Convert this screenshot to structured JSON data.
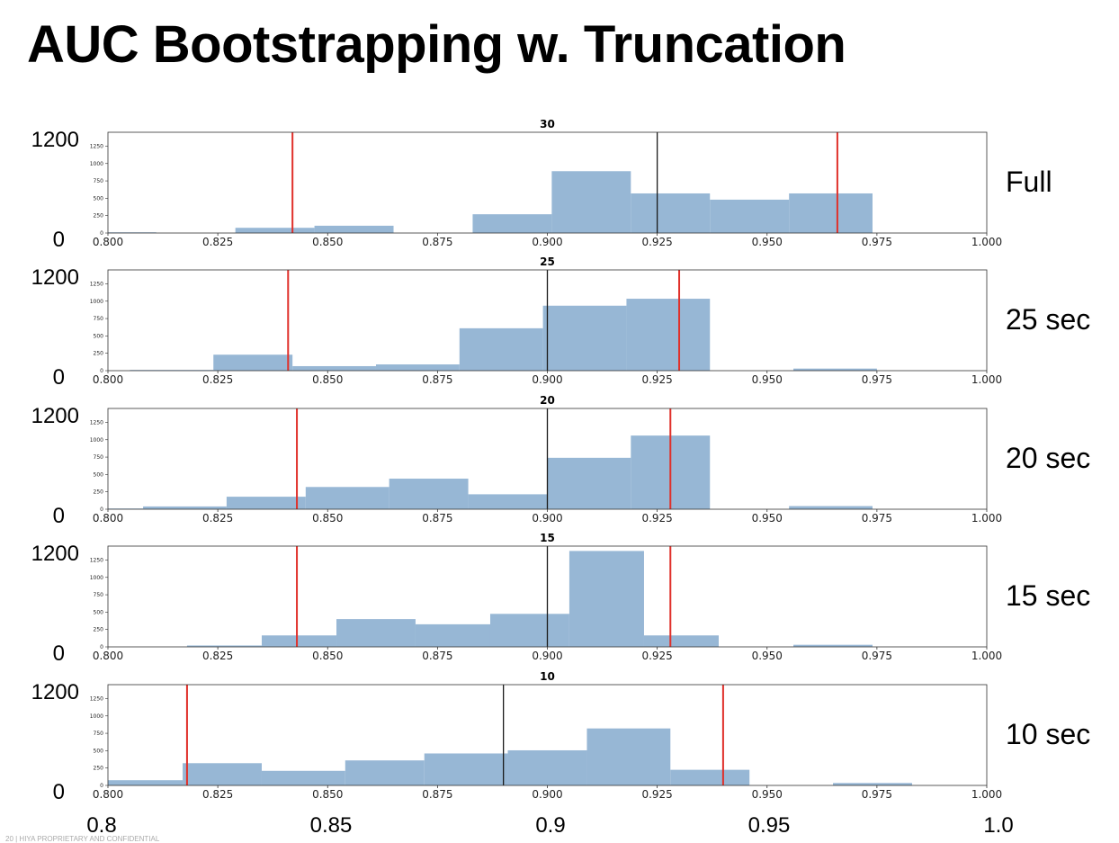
{
  "slide": {
    "title": "AUC Bootstrapping w. Truncation",
    "footer": "20 | HIYA PROPRIETARY AND CONFIDENTIAL"
  },
  "overlay": {
    "y_top_label": "1200",
    "y_bottom_label": "0",
    "bottom_ticks": [
      "0.8",
      "0.85",
      "0.9",
      "0.95",
      "1.0"
    ]
  },
  "colors": {
    "bar_fill": "#97b7d5",
    "ci_line": "#e0302a",
    "mean_line": "#1a1a1a"
  },
  "chart_data": [
    {
      "type": "bar",
      "title": "30",
      "row_label": "Full",
      "xlim": [
        0.8,
        1.0
      ],
      "ylim": [
        0,
        1450
      ],
      "xticks": [
        "0.800",
        "0.825",
        "0.850",
        "0.875",
        "0.900",
        "0.925",
        "0.950",
        "0.975",
        "1.000"
      ],
      "yticks": [
        "0",
        "250",
        "500",
        "750",
        "1000",
        "1250"
      ],
      "bins": [
        {
          "x0": 0.8,
          "x1": 0.811,
          "count": 10
        },
        {
          "x0": 0.829,
          "x1": 0.847,
          "count": 75
        },
        {
          "x0": 0.847,
          "x1": 0.865,
          "count": 105
        },
        {
          "x0": 0.883,
          "x1": 0.901,
          "count": 270
        },
        {
          "x0": 0.901,
          "x1": 0.919,
          "count": 890
        },
        {
          "x0": 0.919,
          "x1": 0.937,
          "count": 570
        },
        {
          "x0": 0.937,
          "x1": 0.955,
          "count": 480
        },
        {
          "x0": 0.955,
          "x1": 0.974,
          "count": 570
        }
      ],
      "ci_lower": 0.842,
      "ci_upper": 0.966,
      "mean": 0.925
    },
    {
      "type": "bar",
      "title": "25",
      "row_label": "25 sec",
      "xlim": [
        0.8,
        1.0
      ],
      "ylim": [
        0,
        1450
      ],
      "xticks": [
        "0.800",
        "0.825",
        "0.850",
        "0.875",
        "0.900",
        "0.925",
        "0.950",
        "0.975",
        "1.000"
      ],
      "yticks": [
        "0",
        "250",
        "500",
        "750",
        "1000",
        "1250"
      ],
      "bins": [
        {
          "x0": 0.805,
          "x1": 0.824,
          "count": 10
        },
        {
          "x0": 0.824,
          "x1": 0.842,
          "count": 230
        },
        {
          "x0": 0.842,
          "x1": 0.861,
          "count": 65
        },
        {
          "x0": 0.861,
          "x1": 0.88,
          "count": 90
        },
        {
          "x0": 0.88,
          "x1": 0.899,
          "count": 610
        },
        {
          "x0": 0.899,
          "x1": 0.918,
          "count": 935
        },
        {
          "x0": 0.918,
          "x1": 0.937,
          "count": 1035
        },
        {
          "x0": 0.956,
          "x1": 0.975,
          "count": 30
        }
      ],
      "ci_lower": 0.841,
      "ci_upper": 0.93,
      "mean": 0.9
    },
    {
      "type": "bar",
      "title": "20",
      "row_label": "20 sec",
      "xlim": [
        0.8,
        1.0
      ],
      "ylim": [
        0,
        1450
      ],
      "xticks": [
        "0.800",
        "0.825",
        "0.850",
        "0.875",
        "0.900",
        "0.925",
        "0.950",
        "0.975",
        "1.000"
      ],
      "yticks": [
        "0",
        "250",
        "500",
        "750",
        "1000",
        "1250"
      ],
      "bins": [
        {
          "x0": 0.8,
          "x1": 0.808,
          "count": 10
        },
        {
          "x0": 0.808,
          "x1": 0.827,
          "count": 40
        },
        {
          "x0": 0.827,
          "x1": 0.845,
          "count": 180
        },
        {
          "x0": 0.845,
          "x1": 0.864,
          "count": 320
        },
        {
          "x0": 0.864,
          "x1": 0.882,
          "count": 440
        },
        {
          "x0": 0.882,
          "x1": 0.9,
          "count": 215
        },
        {
          "x0": 0.9,
          "x1": 0.919,
          "count": 740
        },
        {
          "x0": 0.919,
          "x1": 0.937,
          "count": 1060
        },
        {
          "x0": 0.955,
          "x1": 0.974,
          "count": 45
        }
      ],
      "ci_lower": 0.843,
      "ci_upper": 0.928,
      "mean": 0.9
    },
    {
      "type": "bar",
      "title": "15",
      "row_label": "15 sec",
      "xlim": [
        0.8,
        1.0
      ],
      "ylim": [
        0,
        1450
      ],
      "xticks": [
        "0.800",
        "0.825",
        "0.850",
        "0.875",
        "0.900",
        "0.925",
        "0.950",
        "0.975",
        "1.000"
      ],
      "yticks": [
        "0",
        "250",
        "500",
        "750",
        "1000",
        "1250"
      ],
      "bins": [
        {
          "x0": 0.818,
          "x1": 0.835,
          "count": 20
        },
        {
          "x0": 0.835,
          "x1": 0.852,
          "count": 165
        },
        {
          "x0": 0.852,
          "x1": 0.87,
          "count": 400
        },
        {
          "x0": 0.87,
          "x1": 0.887,
          "count": 325
        },
        {
          "x0": 0.887,
          "x1": 0.905,
          "count": 475
        },
        {
          "x0": 0.905,
          "x1": 0.922,
          "count": 1380
        },
        {
          "x0": 0.922,
          "x1": 0.939,
          "count": 165
        },
        {
          "x0": 0.956,
          "x1": 0.974,
          "count": 30
        }
      ],
      "ci_lower": 0.843,
      "ci_upper": 0.928,
      "mean": 0.9
    },
    {
      "type": "bar",
      "title": "10",
      "row_label": "10 sec",
      "xlim": [
        0.8,
        1.0
      ],
      "ylim": [
        0,
        1450
      ],
      "xticks": [
        "0.800",
        "0.825",
        "0.850",
        "0.875",
        "0.900",
        "0.925",
        "0.950",
        "0.975",
        "1.000"
      ],
      "yticks": [
        "0",
        "250",
        "500",
        "750",
        "1000",
        "1250"
      ],
      "bins": [
        {
          "x0": 0.8,
          "x1": 0.817,
          "count": 75
        },
        {
          "x0": 0.817,
          "x1": 0.835,
          "count": 320
        },
        {
          "x0": 0.835,
          "x1": 0.854,
          "count": 210
        },
        {
          "x0": 0.854,
          "x1": 0.872,
          "count": 360
        },
        {
          "x0": 0.872,
          "x1": 0.891,
          "count": 460
        },
        {
          "x0": 0.891,
          "x1": 0.909,
          "count": 505
        },
        {
          "x0": 0.909,
          "x1": 0.928,
          "count": 820
        },
        {
          "x0": 0.928,
          "x1": 0.946,
          "count": 225
        },
        {
          "x0": 0.965,
          "x1": 0.983,
          "count": 35
        }
      ],
      "ci_lower": 0.818,
      "ci_upper": 0.94,
      "mean": 0.89
    }
  ]
}
